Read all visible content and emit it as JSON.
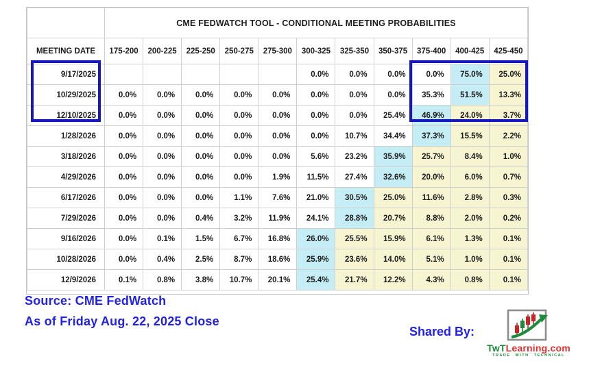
{
  "table": {
    "title": "CME FEDWATCH TOOL - CONDITIONAL MEETING PROBABILITIES",
    "date_column_header": "MEETING DATE",
    "rate_columns": [
      "175-200",
      "200-225",
      "225-250",
      "250-275",
      "275-300",
      "300-325",
      "325-350",
      "350-375",
      "375-400",
      "400-425",
      "425-450"
    ],
    "rows": [
      {
        "date": "9/17/2025",
        "values": [
          "",
          "",
          "",
          "",
          "",
          "0.0%",
          "0.0%",
          "0.0%",
          "0.0%",
          "75.0%",
          "25.0%"
        ],
        "cyan_col": 9
      },
      {
        "date": "10/29/2025",
        "values": [
          "0.0%",
          "0.0%",
          "0.0%",
          "0.0%",
          "0.0%",
          "0.0%",
          "0.0%",
          "0.0%",
          "35.3%",
          "51.5%",
          "13.3%"
        ],
        "cyan_col": 9
      },
      {
        "date": "12/10/2025",
        "values": [
          "0.0%",
          "0.0%",
          "0.0%",
          "0.0%",
          "0.0%",
          "0.0%",
          "0.0%",
          "25.4%",
          "46.9%",
          "24.0%",
          "3.7%"
        ],
        "cyan_col": 8
      },
      {
        "date": "1/28/2026",
        "values": [
          "0.0%",
          "0.0%",
          "0.0%",
          "0.0%",
          "0.0%",
          "0.0%",
          "10.7%",
          "34.4%",
          "37.3%",
          "15.5%",
          "2.2%"
        ],
        "cyan_col": 8
      },
      {
        "date": "3/18/2026",
        "values": [
          "0.0%",
          "0.0%",
          "0.0%",
          "0.0%",
          "0.0%",
          "5.6%",
          "23.2%",
          "35.9%",
          "25.7%",
          "8.4%",
          "1.0%"
        ],
        "cyan_col": 7
      },
      {
        "date": "4/29/2026",
        "values": [
          "0.0%",
          "0.0%",
          "0.0%",
          "0.0%",
          "1.9%",
          "11.5%",
          "27.4%",
          "32.6%",
          "20.0%",
          "6.0%",
          "0.7%"
        ],
        "cyan_col": 7
      },
      {
        "date": "6/17/2026",
        "values": [
          "0.0%",
          "0.0%",
          "0.0%",
          "1.1%",
          "7.6%",
          "21.0%",
          "30.5%",
          "25.0%",
          "11.6%",
          "2.8%",
          "0.3%"
        ],
        "cyan_col": 6
      },
      {
        "date": "7/29/2026",
        "values": [
          "0.0%",
          "0.0%",
          "0.4%",
          "3.2%",
          "11.9%",
          "24.1%",
          "28.8%",
          "20.7%",
          "8.8%",
          "2.0%",
          "0.2%"
        ],
        "cyan_col": 6
      },
      {
        "date": "9/16/2026",
        "values": [
          "0.0%",
          "0.1%",
          "1.5%",
          "6.7%",
          "16.8%",
          "26.0%",
          "25.5%",
          "15.9%",
          "6.1%",
          "1.3%",
          "0.1%"
        ],
        "cyan_col": 5
      },
      {
        "date": "10/28/2026",
        "values": [
          "0.0%",
          "0.4%",
          "2.5%",
          "8.7%",
          "18.6%",
          "25.9%",
          "23.6%",
          "14.0%",
          "5.1%",
          "1.0%",
          "0.1%"
        ],
        "cyan_col": 5
      },
      {
        "date": "12/9/2026",
        "values": [
          "0.1%",
          "0.8%",
          "3.8%",
          "10.7%",
          "20.1%",
          "25.4%",
          "21.7%",
          "12.2%",
          "4.3%",
          "0.8%",
          "0.1%"
        ],
        "cyan_col": 5
      }
    ],
    "colors": {
      "cyan": "#c5edf5",
      "yellow": "#f7f4d2",
      "highlight_box": "#1717c2",
      "caption_text": "#2121e8"
    }
  },
  "footer": {
    "source_line1": "Source: CME FedWatch",
    "source_line2": "As of Friday Aug. 22, 2025 Close",
    "shared_by_label": "Shared By:",
    "logo": {
      "icon": "candlestick-chart-icon",
      "brand_prefix": "TwT",
      "brand_suffix": "Learning.com",
      "tagline": "TRADE WITH TECHNICAL"
    }
  }
}
